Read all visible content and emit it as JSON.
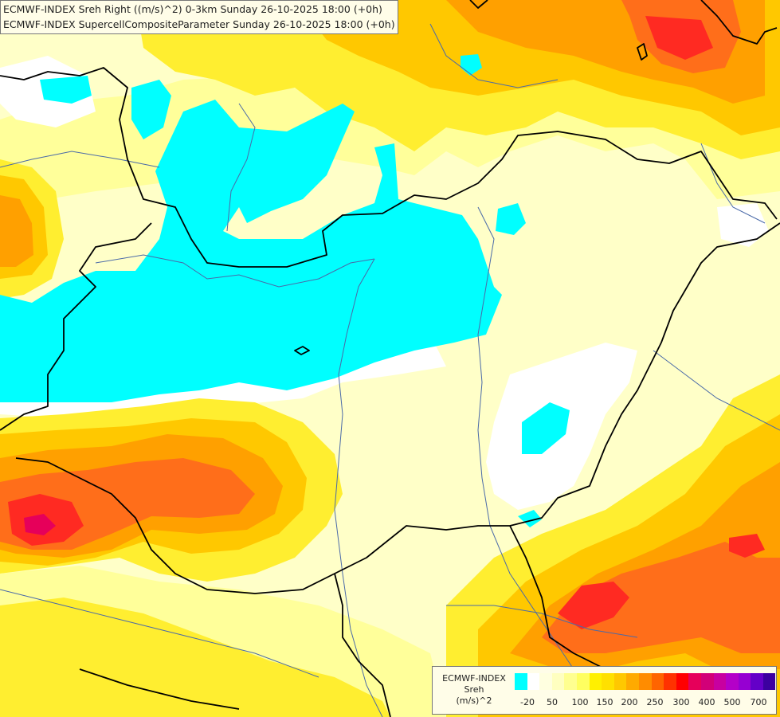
{
  "titles": {
    "line1": "ECMWF-INDEX Sreh Right ((m/s)^2) 0-3km Sunday 26-10-2025 18:00 (+0h)",
    "line2": "ECMWF-INDEX SupercellCompositeParameter Sunday 26-10-2025 18:00 (+0h)"
  },
  "legend": {
    "title_lines": [
      "ECMWF-INDEX",
      "Sreh",
      "(m/s)^2"
    ],
    "colors": [
      "#00ffff",
      "#ffffff",
      "#ffffe0",
      "#ffffc0",
      "#ffff90",
      "#ffff60",
      "#fff000",
      "#ffe000",
      "#ffc800",
      "#ffaa00",
      "#ff8c00",
      "#ff6400",
      "#ff3200",
      "#ff0000",
      "#e6005a",
      "#d20078",
      "#c800a0",
      "#b400c8",
      "#9600d2",
      "#6400c8",
      "#3c00a0"
    ],
    "ticks": [
      "-20",
      "50",
      "100",
      "150",
      "200",
      "250",
      "300",
      "400",
      "500",
      "700"
    ]
  },
  "map": {
    "colors": {
      "cyan": "#00ffff",
      "white": "#ffffff",
      "very_pale": "#ffffc8",
      "pale": "#ffff9a",
      "yellow": "#ffee30",
      "gold": "#ffc800",
      "orange": "#ffa000",
      "dark_orange": "#ff6e1a",
      "red": "#ff2a22",
      "crimson": "#e6005a",
      "border": "#000000",
      "river": "#4a6aa8"
    }
  }
}
